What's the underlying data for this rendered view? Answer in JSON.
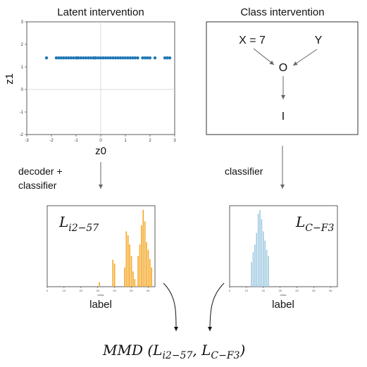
{
  "latent_panel": {
    "title": "Latent intervention",
    "x_axis_label": "z0",
    "y_axis_label": "z1"
  },
  "class_panel": {
    "title": "Class intervention",
    "node_x": "X = 7",
    "node_y": "Y",
    "node_o": "O",
    "node_i": "I"
  },
  "arrows": {
    "left_label_line1": "decoder +",
    "left_label_line2": "classifier",
    "right_label": "classifier"
  },
  "histograms": {
    "left_title_main": "L",
    "left_title_sub": "i2−57",
    "right_title_main": "L",
    "right_title_sub": "C−F3",
    "x_label": "label",
    "small_axis_label": "class"
  },
  "formula": {
    "prefix": "MMD (",
    "a_main": "L",
    "a_sub": "i2−57",
    "sep": ", ",
    "b_main": "L",
    "b_sub": "C−F3",
    "suffix": ")"
  },
  "colors": {
    "scatter": "#1f77b4",
    "left_hist": "#f5a623",
    "right_hist": "#9ecae1"
  },
  "chart_data": [
    {
      "type": "scatter",
      "xlabel": "z0",
      "ylabel": "z1",
      "xlim": [
        -3,
        3
      ],
      "ylim": [
        -2,
        3
      ],
      "xticks": [
        -3,
        -2,
        -1,
        0,
        1,
        2,
        3
      ],
      "yticks": [
        -2,
        -1,
        0,
        1,
        2,
        3
      ],
      "x": [
        -2.2,
        -1.8,
        -1.7,
        -1.6,
        -1.5,
        -1.4,
        -1.3,
        -1.2,
        -1.1,
        -1.0,
        -0.95,
        -0.9,
        -0.8,
        -0.7,
        -0.6,
        -0.5,
        -0.4,
        -0.3,
        -0.25,
        -0.2,
        -0.1,
        0.0,
        0.1,
        0.2,
        0.3,
        0.4,
        0.5,
        0.6,
        0.7,
        0.8,
        0.9,
        1.0,
        1.1,
        1.2,
        1.3,
        1.4,
        1.5,
        1.7,
        1.8,
        1.9,
        2.0,
        2.2,
        2.6,
        2.7,
        2.8
      ],
      "y": [
        1.4,
        1.4,
        1.4,
        1.4,
        1.4,
        1.4,
        1.4,
        1.4,
        1.4,
        1.4,
        1.4,
        1.4,
        1.4,
        1.4,
        1.4,
        1.4,
        1.4,
        1.4,
        1.4,
        1.4,
        1.4,
        1.4,
        1.4,
        1.4,
        1.4,
        1.4,
        1.4,
        1.4,
        1.4,
        1.4,
        1.4,
        1.4,
        1.4,
        1.4,
        1.4,
        1.4,
        1.4,
        1.4,
        1.4,
        1.4,
        1.4,
        1.4,
        1.4,
        1.4,
        1.4
      ]
    },
    {
      "type": "bar",
      "xlabel": "label",
      "xlim": [
        0,
        64
      ],
      "ymax": 1.0,
      "xticks": [
        0,
        10,
        20,
        30,
        40,
        50,
        60
      ],
      "x": [
        31,
        39,
        40,
        46,
        47,
        48,
        49,
        50,
        51,
        52,
        54,
        55,
        56,
        57,
        58,
        59,
        60,
        61,
        62
      ],
      "values": [
        0.06,
        0.35,
        0.3,
        0.25,
        0.72,
        0.67,
        0.55,
        0.4,
        0.2,
        0.1,
        0.4,
        0.55,
        0.8,
        1.0,
        0.85,
        0.58,
        0.48,
        0.36,
        0.25
      ]
    },
    {
      "type": "bar",
      "xlabel": "label",
      "xlim": [
        0,
        64
      ],
      "ymax": 1.0,
      "xticks": [
        0,
        10,
        20,
        30,
        40,
        50,
        60
      ],
      "x": [
        13,
        14,
        15,
        16,
        17,
        18,
        19,
        20,
        21,
        22,
        23
      ],
      "values": [
        0.32,
        0.45,
        0.55,
        0.7,
        0.95,
        1.0,
        0.88,
        0.72,
        0.6,
        0.48,
        0.4
      ]
    }
  ]
}
